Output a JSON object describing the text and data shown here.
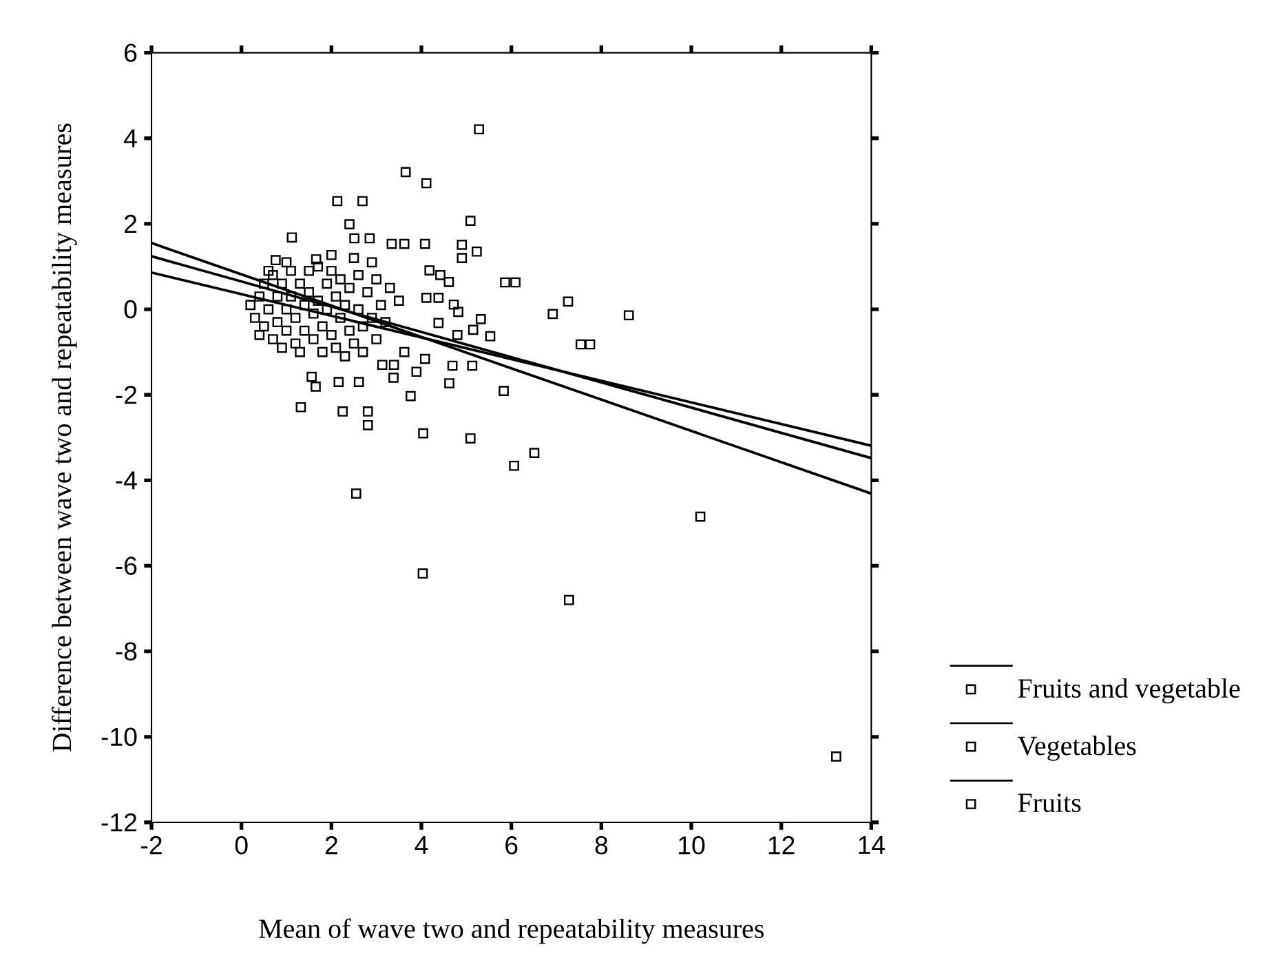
{
  "chart_data": {
    "type": "scatter",
    "xlabel": "Mean of wave two and repeatability measures",
    "ylabel": "Difference between wave two and repeatability measures",
    "xlim": [
      -2,
      14
    ],
    "ylim": [
      -12,
      6
    ],
    "xticks": [
      -2,
      0,
      2,
      4,
      6,
      8,
      10,
      12,
      14
    ],
    "yticks": [
      -12,
      -10,
      -8,
      -6,
      -4,
      -2,
      0,
      2,
      4,
      6
    ],
    "marker": "square",
    "legend": "bottom right",
    "grid": false,
    "series": [
      {
        "name": "Fruits and vegetable",
        "color": "#000000",
        "x": [
          5.28,
          3.65,
          4.11,
          2.13,
          2.69,
          5.09,
          2.4,
          1.12,
          2.51,
          2.85,
          3.34,
          3.62,
          4.08,
          4.9,
          4.9,
          5.23,
          0.76,
          2.0,
          1.66,
          5.86,
          6.09,
          4.61,
          4.18,
          4.42,
          7.26,
          6.92,
          8.61,
          7.54,
          7.75,
          5.32,
          5.15,
          5.53,
          4.72,
          4.82,
          4.38,
          4.11,
          4.38,
          4.8,
          4.08,
          3.62,
          3.13,
          3.39,
          4.69,
          5.13,
          3.89,
          3.38,
          4.62,
          5.83,
          3.76,
          1.56,
          1.65,
          2.16,
          2.61,
          1.32,
          2.25,
          2.81,
          2.81,
          4.04,
          5.09,
          6.51,
          6.06,
          2.55,
          10.2,
          4.03,
          7.28,
          13.22
        ],
        "values": [
          4.21,
          3.21,
          2.95,
          2.53,
          2.53,
          2.07,
          1.99,
          1.68,
          1.66,
          1.66,
          1.53,
          1.53,
          1.53,
          1.51,
          1.2,
          1.35,
          1.15,
          1.27,
          1.17,
          0.63,
          0.63,
          0.64,
          0.91,
          0.8,
          0.18,
          -0.11,
          -0.14,
          -0.82,
          -0.82,
          -0.23,
          -0.48,
          -0.63,
          0.11,
          -0.06,
          -0.32,
          0.27,
          0.27,
          -0.6,
          -1.16,
          -1.0,
          -1.3,
          -1.3,
          -1.32,
          -1.32,
          -1.46,
          -1.6,
          -1.73,
          -1.91,
          -2.03,
          -1.58,
          -1.81,
          -1.7,
          -1.7,
          -2.29,
          -2.39,
          -2.39,
          -2.71,
          -2.9,
          -3.02,
          -3.36,
          -3.66,
          -4.31,
          -4.85,
          -6.18,
          -6.8,
          -10.46
        ]
      },
      {
        "name": "Vegetables",
        "color": "#000000",
        "x": [
          0.2,
          0.3,
          0.4,
          0.5,
          0.5,
          0.6,
          0.7,
          0.7,
          0.8,
          0.8,
          0.9,
          0.9,
          1.0,
          1.0,
          1.1,
          1.1,
          1.2,
          1.2,
          1.3,
          1.3,
          1.4,
          1.4,
          1.5,
          1.5,
          1.6,
          1.6,
          1.7,
          1.7,
          1.8,
          1.8
        ],
        "values": [
          0.1,
          -0.2,
          0.3,
          -0.4,
          0.6,
          0.0,
          -0.7,
          0.8,
          0.3,
          -0.3,
          -0.9,
          0.6,
          0.0,
          -0.5,
          0.9,
          0.3,
          -0.2,
          -0.8,
          0.6,
          -1.0,
          0.1,
          -0.5,
          0.9,
          0.4,
          -0.1,
          -0.7,
          1.0,
          0.2,
          -0.4,
          -1.0
        ]
      },
      {
        "name": "Fruits",
        "color": "#000000",
        "x": [
          1.9,
          1.9,
          2.0,
          2.0,
          2.1,
          2.1,
          2.2,
          2.2,
          2.3,
          2.3,
          2.4,
          2.4,
          2.5,
          2.5,
          2.6,
          2.6,
          2.7,
          2.7,
          2.8,
          2.9,
          3.0,
          3.0,
          3.1,
          3.2,
          3.3,
          0.4,
          0.6,
          1.0,
          2.9,
          3.5
        ],
        "values": [
          0.6,
          0.0,
          -0.6,
          0.9,
          0.3,
          -0.9,
          -0.2,
          0.7,
          -1.1,
          0.1,
          -0.5,
          0.5,
          1.2,
          -0.8,
          0.0,
          0.8,
          -0.4,
          -1.0,
          0.4,
          -0.2,
          0.7,
          -0.7,
          0.1,
          -0.3,
          0.5,
          -0.6,
          0.9,
          1.1,
          1.1,
          0.2
        ]
      },
      {
        "type": "line",
        "color": "#000000",
        "x": [
          -2,
          14
        ],
        "values": [
          1.55,
          -4.31
        ],
        "marker": "none"
      },
      {
        "type": "line",
        "color": "#000000",
        "x": [
          -2,
          14
        ],
        "values": [
          1.24,
          -3.48
        ],
        "marker": "none"
      },
      {
        "type": "line",
        "color": "#000000",
        "x": [
          -2,
          14
        ],
        "values": [
          0.86,
          -3.19
        ],
        "marker": "none"
      }
    ]
  }
}
